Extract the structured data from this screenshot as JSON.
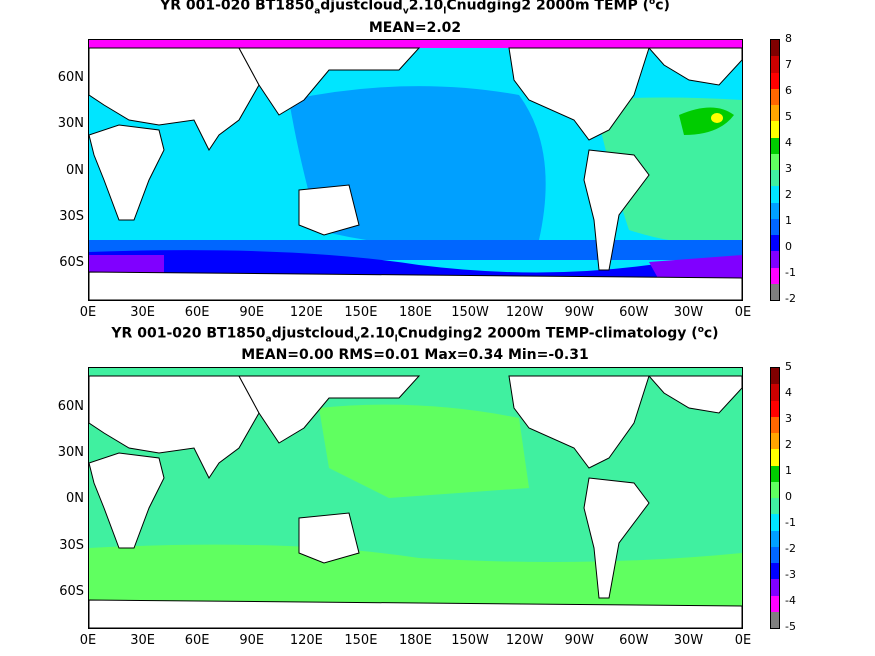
{
  "top": {
    "title_line1_a": "YR 001-020 BT1850",
    "title_sub1": "a",
    "title_line1_b": "djustcloud",
    "title_sub2": "v",
    "title_line1_c": "2.10",
    "title_sub3": "l",
    "title_line1_d": "Cnudging2 2000m TEMP (",
    "title_sup": "o",
    "title_line1_e": "c)",
    "title_line2": "MEAN=2.02",
    "colorbar_labels": [
      "8",
      "7",
      "6",
      "5",
      "4",
      "3",
      "2",
      "1",
      "0",
      "-1",
      "-2"
    ]
  },
  "bottom": {
    "title_line1_a": "YR 001-020 BT1850",
    "title_sub1": "a",
    "title_line1_b": "djustcloud",
    "title_sub2": "v",
    "title_line1_c": "2.10",
    "title_sub3": "l",
    "title_line1_d": "Cnudging2 2000m TEMP-climatology (",
    "title_sup": "o",
    "title_line1_e": "c)",
    "title_line2": "MEAN=0.00   RMS=0.01   Max=0.34   Min=-0.31",
    "colorbar_labels": [
      "5",
      "4",
      "3",
      "2",
      "1",
      "0",
      "-1",
      "-2",
      "-3",
      "-4",
      "-5"
    ]
  },
  "axes": {
    "lat_labels": [
      "60N",
      "30N",
      "0N",
      "30S",
      "60S"
    ],
    "lon_labels": [
      "0E",
      "30E",
      "60E",
      "90E",
      "120E",
      "150E",
      "180E",
      "150W",
      "120W",
      "90W",
      "60W",
      "30W",
      "0E"
    ]
  },
  "colors": {
    "scale": [
      "#7f7f7f",
      "#ff00ff",
      "#8000ff",
      "#0000ff",
      "#0066ff",
      "#00a0ff",
      "#00e5ff",
      "#40f0a0",
      "#60ff60",
      "#00cc00",
      "#ffff00",
      "#ffa500",
      "#ff6600",
      "#ff0000",
      "#cc0000",
      "#800000"
    ],
    "land": "#ffffff",
    "coast": "#000000"
  }
}
